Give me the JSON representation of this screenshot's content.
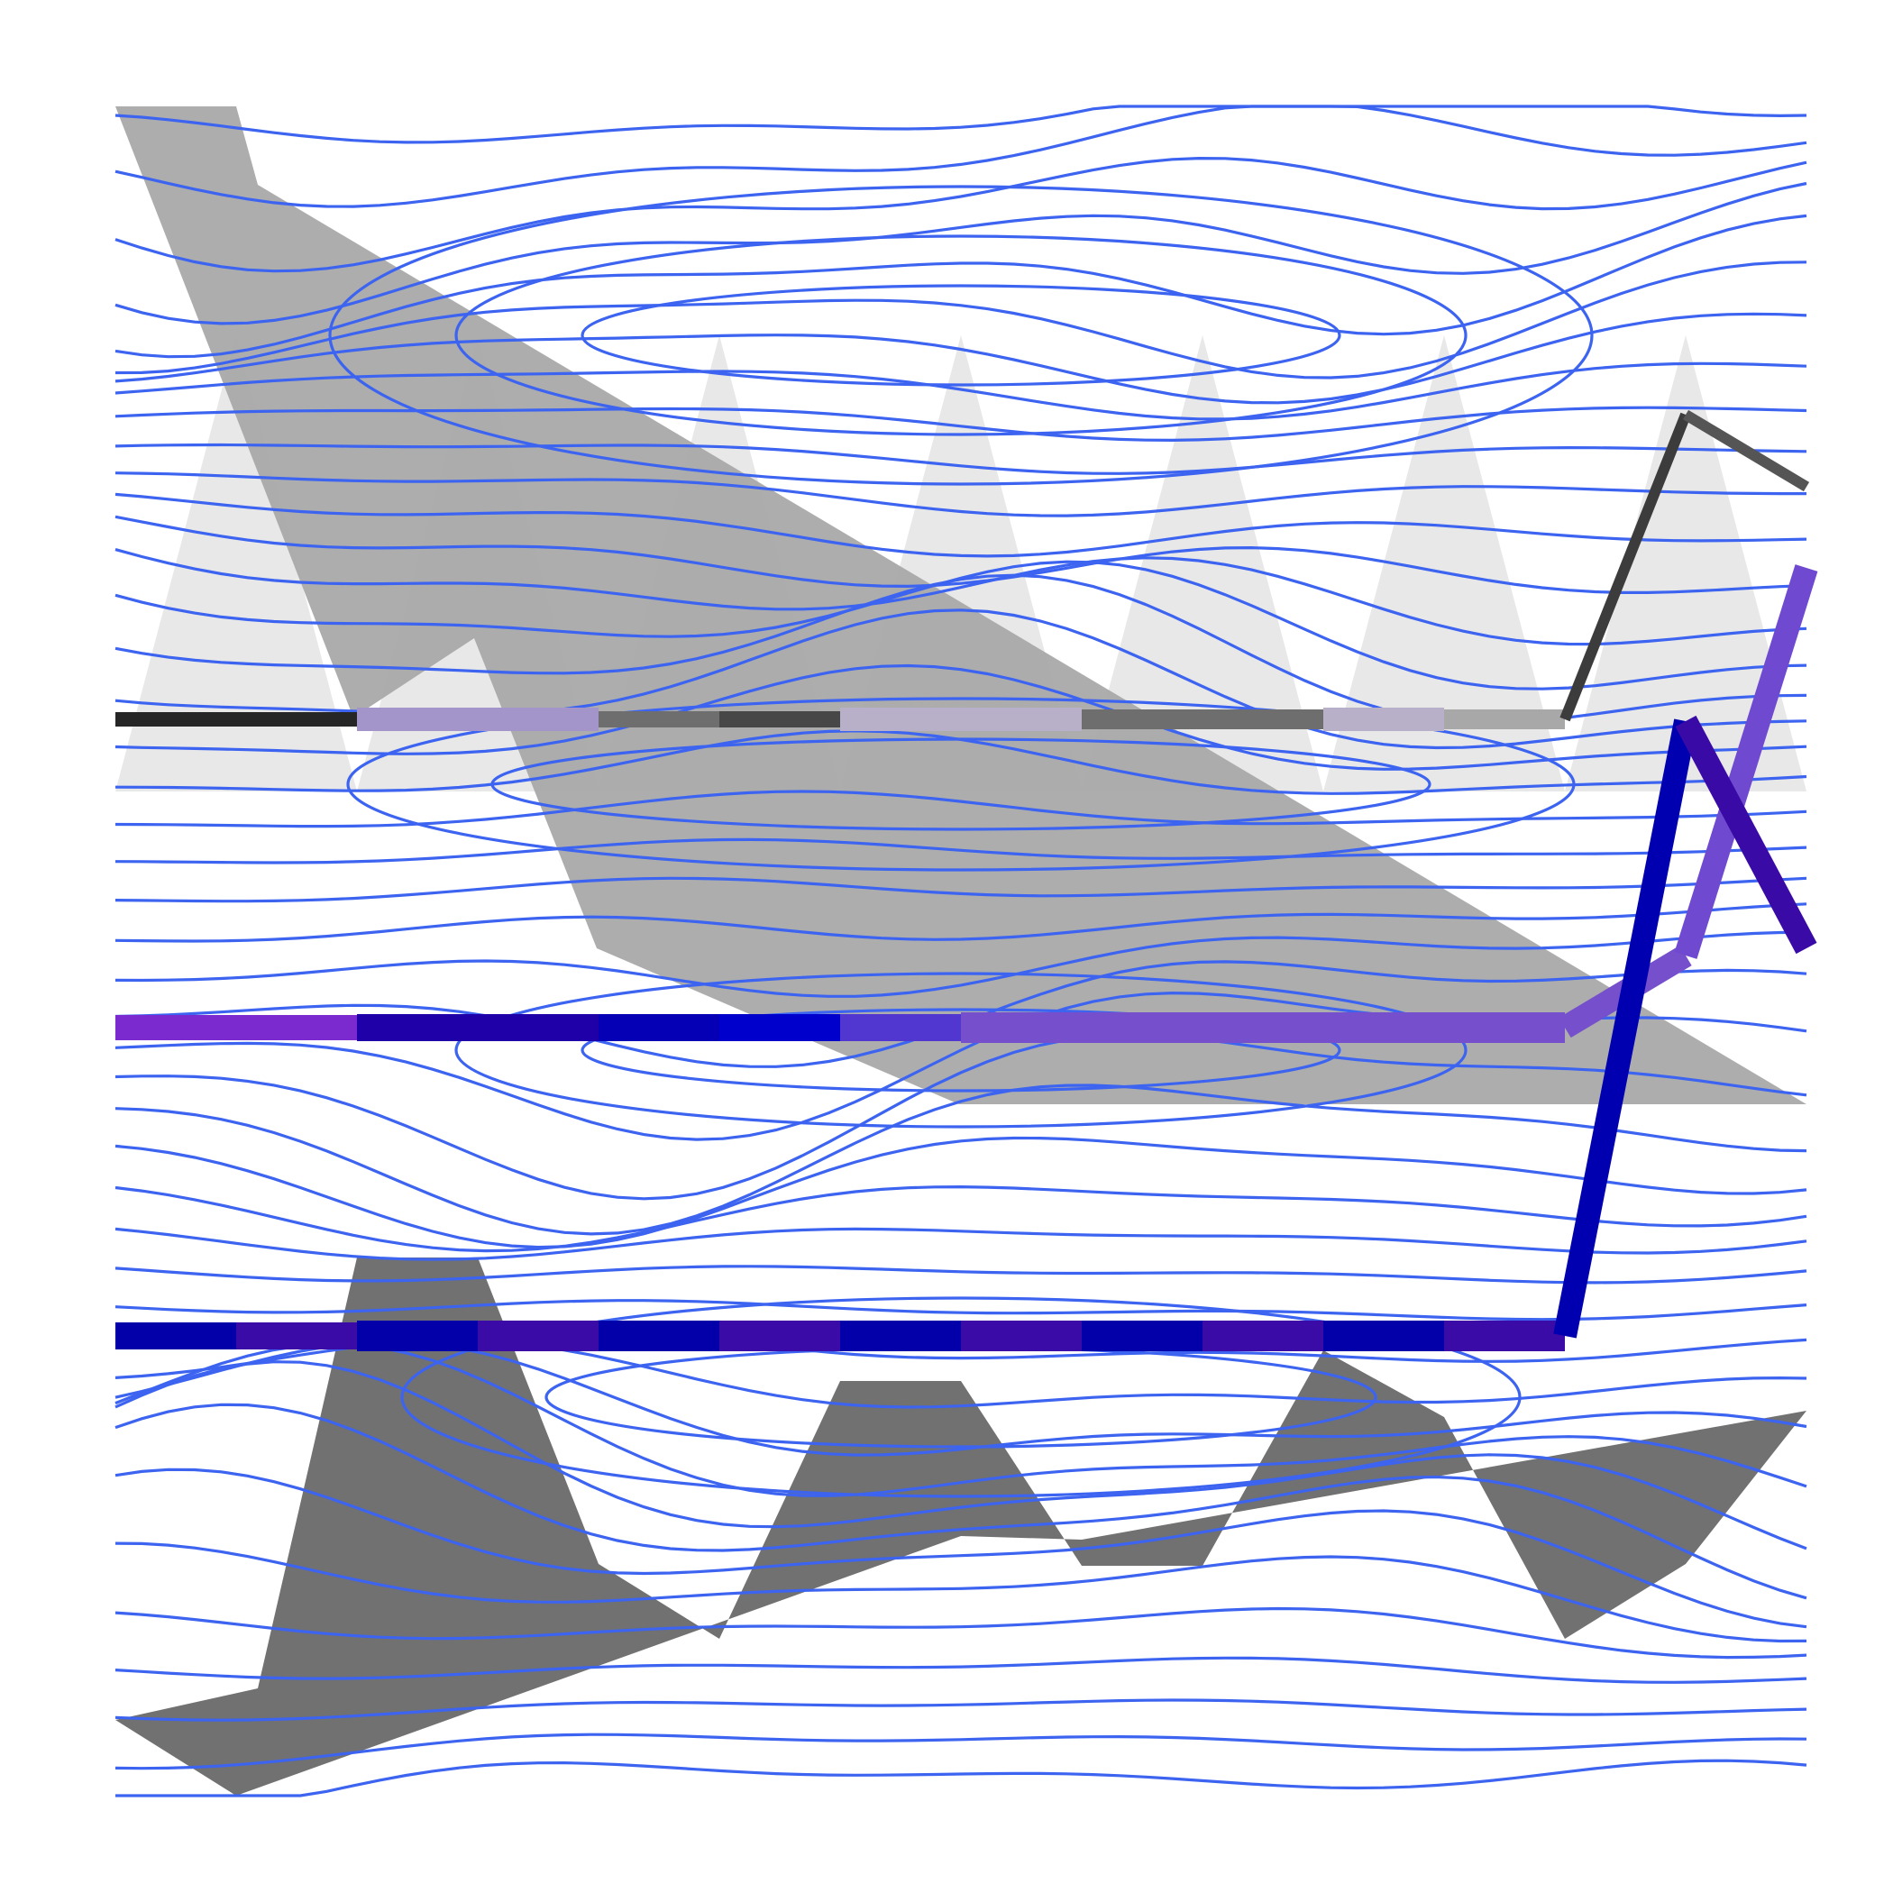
{
  "colors": {
    "background": "#ffffff",
    "contour": "#3c64f0",
    "triangles_light": "#e8e8e8",
    "wedge_mid": "#a6a6a6",
    "polygon_dark": "#717171"
  },
  "contour_count": 46,
  "ribbons": [
    {
      "name": "top-ribbon",
      "colors": [
        "#262626",
        "#262626",
        "#a394c9",
        "#a394c9",
        "#6e6e6e",
        "#474747",
        "#b8b0c8",
        "#b8b0c8",
        "#6e6e6e",
        "#6e6e6e",
        "#b8b0c8",
        "#a8a8a8"
      ],
      "end_segments": [
        "#3c3c3c",
        "#555555"
      ]
    },
    {
      "name": "middle-ribbon",
      "colors": [
        "#7b2acf",
        "#7b2acf",
        "#1f00a8",
        "#1f00a8",
        "#0500b5",
        "#0000cc",
        "#5236d0",
        "#7650cc",
        "#7650cc",
        "#7650cc",
        "#7650cc",
        "#7650cc"
      ],
      "end_segments": [
        "#7650cc",
        "#6f4ad0"
      ]
    },
    {
      "name": "bottom-ribbon",
      "colors": [
        "#0300aa",
        "#3b0ba8",
        "#0300aa",
        "#3b0ba8",
        "#0300aa",
        "#3b0ba8",
        "#0300aa",
        "#3b0ba8",
        "#0300aa",
        "#3b0ba8",
        "#0300aa",
        "#3b0ba8"
      ],
      "end_segments": [
        "#0000b0",
        "#3a0aa6"
      ]
    }
  ]
}
